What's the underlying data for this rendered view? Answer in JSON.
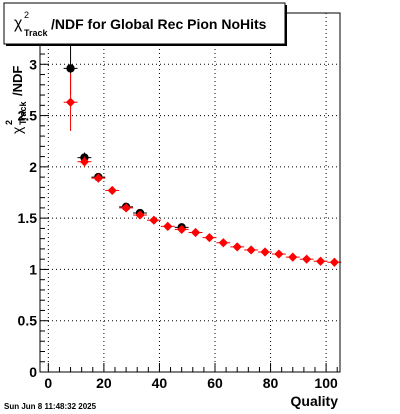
{
  "chart_data": {
    "type": "scatter",
    "title": "/NDF for Global Rec Pion NoHits",
    "title_symbol": "χ",
    "title_sup": "2",
    "title_sub": "Track",
    "xlabel": "Quality",
    "ylabel": "/NDF",
    "ylabel_symbol": "χ",
    "ylabel_sup": "2",
    "ylabel_sub": "Track",
    "xlim": [
      -3,
      105
    ],
    "ylim": [
      0,
      3.5
    ],
    "x_ticks": [
      0,
      20,
      40,
      60,
      80,
      100
    ],
    "x_tick_labels": [
      "0",
      "20",
      "40",
      "60",
      "80",
      "100"
    ],
    "y_ticks": [
      0,
      0.5,
      1,
      1.5,
      2,
      2.5,
      3
    ],
    "y_tick_labels": [
      "0",
      "0.5",
      "1",
      "1.5",
      "2",
      "2.5",
      "3"
    ],
    "grid": true,
    "series": [
      {
        "marker": "circle",
        "color": "#000000",
        "points": [
          {
            "x": 8,
            "y": 2.96,
            "ey": 0.26,
            "ex": 2.5
          },
          {
            "x": 13,
            "y": 2.09,
            "ey": 0.05,
            "ex": 2.5
          },
          {
            "x": 18,
            "y": 1.9,
            "ey": 0.03,
            "ex": 2.5
          },
          {
            "x": 28,
            "y": 1.61,
            "ey": 0.03,
            "ex": 2.5
          },
          {
            "x": 33,
            "y": 1.55,
            "ey": 0.03,
            "ex": 2.5
          },
          {
            "x": 48,
            "y": 1.41,
            "ey": 0.02,
            "ex": 2.5
          }
        ]
      },
      {
        "marker": "diamond",
        "color": "#ff0000",
        "points": [
          {
            "x": 8,
            "y": 2.63,
            "ey": 0.28,
            "ex": 2.5
          },
          {
            "x": 13,
            "y": 2.05,
            "ey": 0.05,
            "ex": 2.5
          },
          {
            "x": 18,
            "y": 1.89,
            "ey": 0.03,
            "ex": 2.5
          },
          {
            "x": 23,
            "y": 1.77,
            "ey": 0.02,
            "ex": 2.5
          },
          {
            "x": 28,
            "y": 1.6,
            "ey": 0.02,
            "ex": 2.5
          },
          {
            "x": 33,
            "y": 1.53,
            "ey": 0.02,
            "ex": 2.5
          },
          {
            "x": 38,
            "y": 1.48,
            "ey": 0.02,
            "ex": 2.5
          },
          {
            "x": 43,
            "y": 1.42,
            "ey": 0.02,
            "ex": 2.5
          },
          {
            "x": 48,
            "y": 1.39,
            "ey": 0.02,
            "ex": 2.5
          },
          {
            "x": 53,
            "y": 1.36,
            "ey": 0.01,
            "ex": 2.5
          },
          {
            "x": 58,
            "y": 1.31,
            "ey": 0.01,
            "ex": 2.5
          },
          {
            "x": 63,
            "y": 1.26,
            "ey": 0.01,
            "ex": 2.5
          },
          {
            "x": 68,
            "y": 1.22,
            "ey": 0.01,
            "ex": 2.5
          },
          {
            "x": 73,
            "y": 1.19,
            "ey": 0.01,
            "ex": 2.5
          },
          {
            "x": 78,
            "y": 1.17,
            "ey": 0.01,
            "ex": 2.5
          },
          {
            "x": 83,
            "y": 1.15,
            "ey": 0.01,
            "ex": 2.5
          },
          {
            "x": 88,
            "y": 1.12,
            "ey": 0.01,
            "ex": 2.5
          },
          {
            "x": 93,
            "y": 1.1,
            "ey": 0.01,
            "ex": 2.5
          },
          {
            "x": 98,
            "y": 1.08,
            "ey": 0.01,
            "ex": 2.5
          },
          {
            "x": 103,
            "y": 1.07,
            "ey": 0.01,
            "ex": 2.5
          }
        ]
      }
    ]
  },
  "footer": {
    "timestamp": "Sun Jun  8 11:48:32 2025"
  }
}
